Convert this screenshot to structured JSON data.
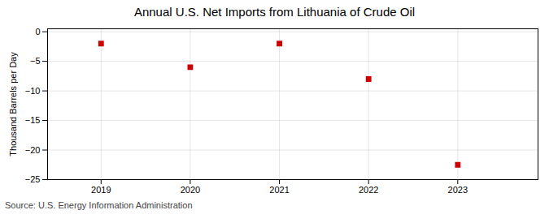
{
  "chart_data": {
    "type": "scatter",
    "title": "Annual U.S. Net Imports from Lithuania of Crude Oil",
    "ylabel": "Thousand Barrels per Day",
    "source": "Source: U.S. Energy Information Administration",
    "x": [
      2019,
      2020,
      2021,
      2022,
      2023
    ],
    "values": [
      -2.0,
      -6.0,
      -2.0,
      -8.0,
      -22.5
    ],
    "color": "#cc0000",
    "marker": "square",
    "xlim": [
      2018.4,
      2023.9
    ],
    "xticks": [
      2019,
      2020,
      2021,
      2022,
      2023
    ],
    "ylim": [
      -25,
      0.5
    ],
    "yticks": [
      0,
      -5,
      -10,
      -15,
      -20,
      -25
    ],
    "grid": true
  }
}
